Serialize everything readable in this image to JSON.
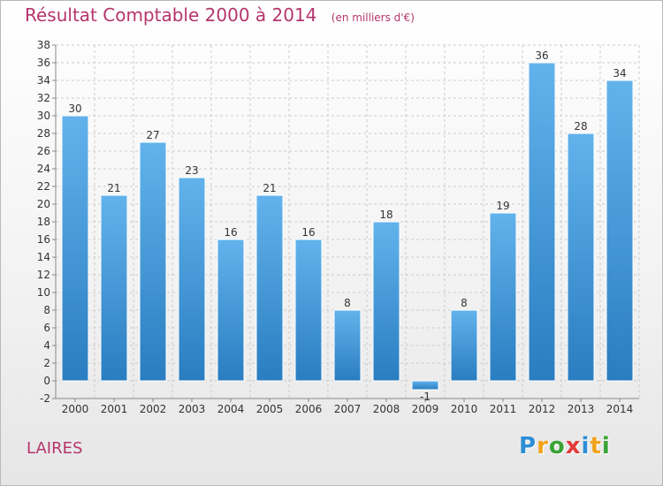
{
  "header": {
    "title": "Résultat Comptable 2000 à 2014",
    "subtitle": "(en milliers d'€)"
  },
  "footer": {
    "commune": "LAIRES",
    "logo_letters": [
      {
        "char": "P",
        "color": "#2e8fd6"
      },
      {
        "char": "r",
        "color": "#f0a31b"
      },
      {
        "char": "o",
        "color": "#3aa335"
      },
      {
        "char": "x",
        "color": "#e23a3a"
      },
      {
        "char": "i",
        "color": "#2e8fd6"
      },
      {
        "char": "t",
        "color": "#f0a31b"
      },
      {
        "char": "i",
        "color": "#3aa335"
      }
    ]
  },
  "colors": {
    "title": "#b5356c",
    "bar_light": "#62b3ec",
    "bar_dark": "#2a7dc0",
    "grid": "#cccccc"
  },
  "chart_data": {
    "type": "bar",
    "title": "Résultat Comptable 2000 à 2014",
    "subtitle": "(en milliers d'€)",
    "xlabel": "",
    "ylabel": "",
    "categories": [
      "2000",
      "2001",
      "2002",
      "2003",
      "2004",
      "2005",
      "2006",
      "2007",
      "2008",
      "2009",
      "2010",
      "2011",
      "2012",
      "2013",
      "2014"
    ],
    "values": [
      30,
      21,
      27,
      23,
      16,
      21,
      16,
      8,
      18,
      -1,
      8,
      19,
      36,
      28,
      34
    ],
    "ylim": [
      -2,
      38
    ],
    "yticks": [
      -2,
      0,
      2,
      4,
      6,
      8,
      10,
      12,
      14,
      16,
      18,
      20,
      22,
      24,
      26,
      28,
      30,
      32,
      34,
      36,
      38
    ],
    "grid": true,
    "legend": "none"
  }
}
